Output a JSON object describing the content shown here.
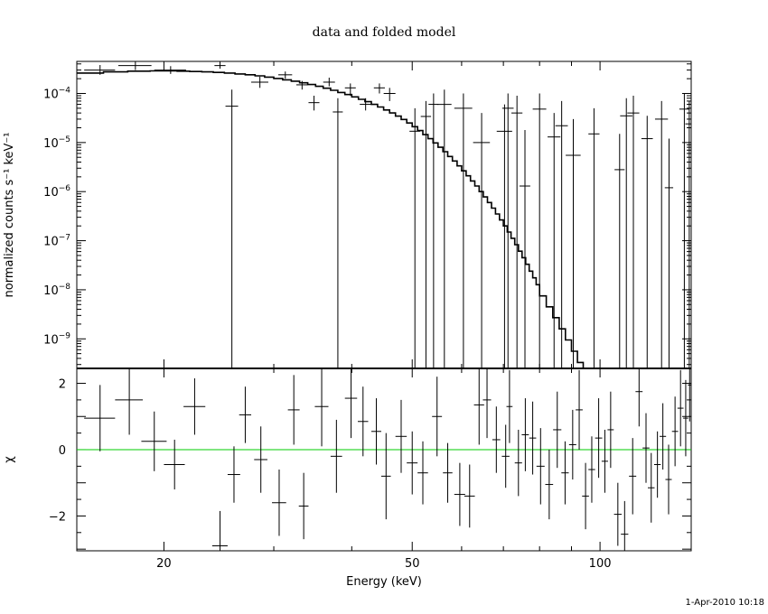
{
  "title": "data and folded model",
  "timestamp": "1-Apr-2010 10:18",
  "colors": {
    "axes": "#000000",
    "zero_line": "#00cc00"
  },
  "chart_data": [
    {
      "type": "scatter",
      "panel": "top",
      "xlabel": "Energy (keV)",
      "ylabel": "normalized counts s⁻¹ keV⁻¹",
      "xscale": "log",
      "yscale": "log",
      "xlim": [
        14.5,
        140
      ],
      "ylim": [
        2.5e-10,
        0.00045
      ],
      "yticks": [
        1e-09,
        1e-08,
        1e-07,
        1e-06,
        1e-05,
        0.0001
      ],
      "ytick_labels": [
        [
          "10",
          "−9"
        ],
        [
          "10",
          "−8"
        ],
        [
          "10",
          "−7"
        ],
        [
          "10",
          "−6"
        ],
        [
          "10",
          "−5"
        ],
        [
          "10",
          "−4"
        ]
      ],
      "data": {
        "x": [
          15.8,
          18.0,
          20.5,
          24.6,
          25.7,
          28.5,
          31.3,
          33.3,
          34.8,
          36.8,
          38.0,
          39.8,
          42.1,
          44.3,
          46.0,
          50.5,
          52.6,
          54.1,
          56.3,
          60.4,
          64.6,
          70.3,
          71.2,
          73.6,
          75.8,
          80.0,
          84.4,
          86.8,
          90.6,
          97.8,
          107.5,
          110.2,
          113.1,
          119.0,
          125.5,
          129.0,
          136.5,
          139.0
        ],
        "y": [
          0.0003,
          0.00037,
          0.0003,
          0.00037,
          5.5e-05,
          0.00017,
          0.00024,
          0.00015,
          6.5e-05,
          0.00017,
          4.2e-05,
          0.00013,
          6e-05,
          0.00013,
          0.0001,
          1.7e-05,
          3.4e-05,
          6e-05,
          6e-05,
          5e-05,
          1e-05,
          1.7e-05,
          5e-05,
          4e-05,
          1.3e-06,
          4.8e-05,
          1.3e-05,
          2.2e-05,
          5.5e-06,
          1.5e-05,
          2.8e-06,
          3.5e-05,
          4e-05,
          1.2e-05,
          3e-05,
          1.2e-06,
          4.8e-05,
          2.4e-05
        ],
        "xerr": [
          0.9,
          1.1,
          1.2,
          0.5,
          0.6,
          0.9,
          0.8,
          0.7,
          0.7,
          0.8,
          0.7,
          0.8,
          0.9,
          0.9,
          1.0,
          1.0,
          1.0,
          1.0,
          1.5,
          2.0,
          2.0,
          2.0,
          1.5,
          1.5,
          1.5,
          2.0,
          2.0,
          2.0,
          2.5,
          2.0,
          2.0,
          2.5,
          2.5,
          2.5,
          3.0,
          2.0,
          2.5,
          2.0
        ],
        "ylo": [
          0.00024,
          0.0003,
          0.00025,
          0.00032,
          2.5e-10,
          0.00013,
          0.0002,
          0.00012,
          4.5e-05,
          0.00014,
          2.5e-10,
          9e-05,
          4.5e-05,
          0.0001,
          7e-05,
          2.5e-10,
          2.5e-10,
          2.5e-10,
          2.5e-10,
          2.5e-10,
          2.5e-10,
          2.5e-10,
          2.5e-10,
          2.5e-10,
          2.5e-10,
          2.5e-10,
          2.5e-10,
          2.5e-10,
          2.5e-10,
          2.5e-10,
          2.5e-10,
          2.5e-10,
          2.5e-10,
          2.5e-10,
          2.5e-10,
          2.5e-10,
          2.5e-10,
          2.5e-10
        ],
        "yhi": [
          0.00038,
          0.00044,
          0.00036,
          0.00044,
          0.00012,
          0.00022,
          0.00028,
          0.00018,
          9e-05,
          0.00021,
          8e-05,
          0.00016,
          8e-05,
          0.00016,
          0.00013,
          5e-05,
          7e-05,
          0.0001,
          0.00012,
          0.0001,
          4e-05,
          6e-05,
          0.0001,
          9e-05,
          1.8e-05,
          0.0001,
          4e-05,
          7e-05,
          3e-05,
          5e-05,
          1.5e-05,
          8e-05,
          9e-05,
          3.5e-05,
          7e-05,
          1.2e-05,
          0.0001,
          7e-05
        ]
      },
      "model": {
        "edges": [
          14.5,
          16.0,
          17.5,
          19.0,
          20.0,
          21.0,
          22.0,
          23.0,
          24.0,
          25.0,
          26.0,
          27.0,
          28.0,
          29.0,
          30.0,
          31.0,
          32.0,
          33.0,
          34.0,
          35.0,
          36.0,
          37.0,
          38.0,
          39.0,
          40.0,
          41.0,
          42.0,
          43.0,
          44.0,
          45.0,
          46.0,
          47.0,
          48.0,
          49.0,
          50.0,
          51.0,
          52.0,
          53.0,
          54.0,
          55.0,
          56.0,
          57.0,
          58.0,
          59.0,
          60.0,
          61.0,
          62.0,
          63.0,
          64.0,
          65.0,
          66.0,
          67.0,
          68.0,
          69.0,
          70.0,
          71.0,
          72.0,
          73.0,
          74.0,
          75.0,
          76.0,
          77.0,
          78.0,
          79.0,
          80.0,
          82.0,
          84.0,
          86.0,
          88.0,
          90.0,
          92.0,
          94.0,
          96.0,
          98.0,
          100.0,
          102.0,
          104.0,
          106.0,
          108.0,
          110.0,
          112.0,
          114.0,
          116.0,
          118.0,
          120.0,
          122.0,
          124.0,
          126.0,
          128.0,
          130.0,
          132.0,
          134.0,
          136.0,
          138.0,
          140.0
        ],
        "values": [
          0.00026,
          0.000275,
          0.000285,
          0.000288,
          0.000288,
          0.000285,
          0.00028,
          0.000275,
          0.000268,
          0.00026,
          0.00025,
          0.00024,
          0.000228,
          0.000215,
          0.000202,
          0.00019,
          0.000178,
          0.000165,
          0.000152,
          0.00014,
          0.000128,
          0.000116,
          0.000105,
          9.5e-05,
          8.5e-05,
          7.6e-05,
          6.8e-05,
          6e-05,
          5.3e-05,
          4.6e-05,
          4e-05,
          3.45e-05,
          2.95e-05,
          2.5e-05,
          2.1e-05,
          1.75e-05,
          1.45e-05,
          1.2e-05,
          9.8e-06,
          8e-06,
          6.5e-06,
          5.2e-06,
          4.2e-06,
          3.35e-06,
          2.65e-06,
          2.1e-06,
          1.65e-06,
          1.3e-06,
          1e-06,
          7.8e-07,
          6e-07,
          4.6e-07,
          3.5e-07,
          2.65e-07,
          2e-07,
          1.5e-07,
          1.12e-07,
          8.3e-08,
          6.1e-08,
          4.5e-08,
          3.3e-08,
          2.4e-08,
          1.75e-08,
          1.27e-08,
          7.5e-09,
          4.5e-09,
          2.7e-09,
          1.6e-09,
          9.5e-10,
          5.6e-10,
          3.3e-10,
          2.5e-10,
          2.5e-10,
          2.5e-10,
          2.5e-10,
          2.5e-10,
          2.5e-10,
          2.5e-10,
          2.5e-10,
          2.5e-10,
          2.5e-10,
          2.5e-10,
          2.5e-10,
          2.5e-10,
          2.5e-10,
          2.5e-10,
          2.5e-10,
          2.5e-10,
          2.5e-10,
          2.5e-10,
          2.5e-10,
          2.5e-10,
          2.5e-10,
          2.5e-10
        ]
      }
    },
    {
      "type": "scatter",
      "panel": "bottom",
      "xlabel": "Energy (keV)",
      "ylabel": "χ",
      "xscale": "log",
      "xlim": [
        14.5,
        140
      ],
      "ylim": [
        -3.05,
        2.45
      ],
      "xticks": [
        20,
        50,
        100
      ],
      "xtick_labels": [
        "20",
        "50",
        "100"
      ],
      "yticks": [
        -2,
        0,
        2
      ],
      "ytick_labels": [
        "−2",
        "0",
        "2"
      ],
      "zero_line": 0,
      "data": {
        "x": [
          15.8,
          17.6,
          19.3,
          20.8,
          22.4,
          24.6,
          25.9,
          27.0,
          28.6,
          30.6,
          32.3,
          33.5,
          35.8,
          37.8,
          39.9,
          41.7,
          43.8,
          45.4,
          48.0,
          50.0,
          52.0,
          54.8,
          57.0,
          59.6,
          61.8,
          64.0,
          65.9,
          68.2,
          70.6,
          71.6,
          74.0,
          75.9,
          78.0,
          80.3,
          82.9,
          85.4,
          87.9,
          90.4,
          92.6,
          94.8,
          97.0,
          99.5,
          101.8,
          104.0,
          106.8,
          109.5,
          112.8,
          115.5,
          118.5,
          120.8,
          123.6,
          126.1,
          128.8,
          131.9,
          134.6,
          137.2,
          139.2
        ],
        "y": [
          0.95,
          1.5,
          0.25,
          -0.45,
          1.3,
          -2.9,
          -0.75,
          1.05,
          -0.3,
          -1.6,
          1.2,
          -1.7,
          1.3,
          -0.2,
          1.55,
          0.85,
          0.55,
          -0.8,
          0.4,
          -0.4,
          -0.7,
          1.0,
          -0.7,
          -1.35,
          -1.4,
          1.35,
          1.5,
          0.3,
          -0.2,
          1.3,
          -0.4,
          0.45,
          0.35,
          -0.5,
          -1.05,
          0.6,
          -0.7,
          0.15,
          1.2,
          -1.4,
          -0.6,
          0.35,
          -0.35,
          0.6,
          -1.95,
          -2.55,
          -0.8,
          1.75,
          0.05,
          -1.15,
          -0.45,
          0.4,
          -0.9,
          0.55,
          1.25,
          0.95,
          1.95
        ],
        "xerr": [
          0.9,
          0.9,
          0.9,
          0.8,
          0.9,
          0.7,
          0.6,
          0.6,
          0.7,
          0.8,
          0.7,
          0.6,
          0.9,
          0.8,
          0.9,
          0.8,
          0.8,
          0.8,
          1.0,
          1.0,
          1.0,
          1.0,
          1.0,
          1.2,
          1.2,
          1.2,
          1.0,
          1.0,
          1.0,
          0.8,
          1.0,
          1.0,
          1.0,
          1.2,
          1.2,
          1.3,
          1.2,
          1.2,
          1.2,
          1.2,
          1.2,
          1.3,
          1.2,
          1.2,
          1.5,
          1.5,
          1.5,
          1.5,
          1.5,
          1.5,
          1.5,
          1.5,
          1.5,
          1.5,
          1.5,
          1.3,
          0.9
        ],
        "yerr": [
          1.0,
          1.05,
          0.9,
          0.75,
          0.85,
          1.05,
          0.85,
          0.85,
          1.0,
          1.0,
          1.05,
          1.0,
          1.2,
          1.1,
          1.2,
          1.05,
          1.0,
          1.3,
          1.1,
          0.95,
          0.95,
          1.2,
          0.9,
          0.95,
          0.95,
          1.2,
          1.15,
          1.0,
          0.95,
          1.1,
          1.0,
          1.1,
          1.1,
          1.15,
          1.05,
          1.15,
          0.95,
          1.05,
          1.2,
          1.0,
          1.0,
          1.2,
          0.95,
          1.15,
          0.95,
          1.0,
          1.15,
          1.05,
          1.05,
          1.05,
          1.0,
          1.0,
          1.05,
          1.05,
          1.15,
          1.15,
          1.1
        ]
      }
    }
  ]
}
